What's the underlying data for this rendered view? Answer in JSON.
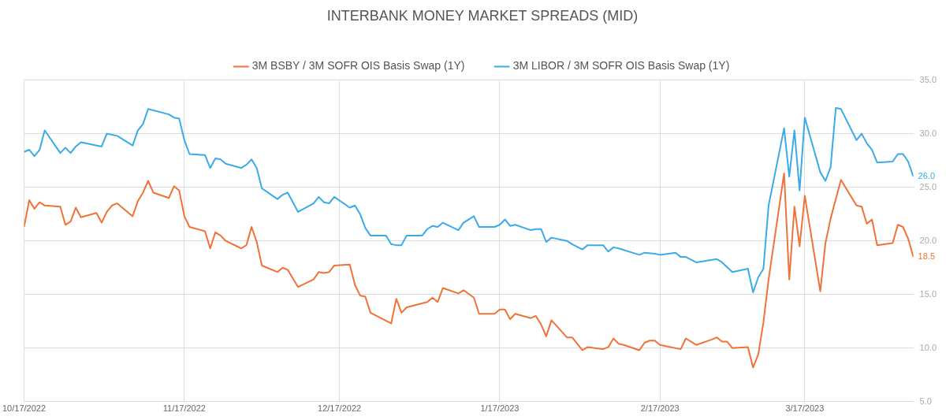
{
  "chart_data": {
    "type": "line",
    "title": "INTERBANK MONEY MARKET SPREADS (MID)",
    "legend": "top",
    "grid": true,
    "marker": "none",
    "line_style": "solid",
    "xlim": [
      "2022-10-17",
      "2023-04-07"
    ],
    "xticks": [
      {
        "value": "2022-10-17",
        "label": "10/17/2022"
      },
      {
        "value": "2022-11-17",
        "label": "11/17/2022"
      },
      {
        "value": "2022-12-17",
        "label": "12/17/2022"
      },
      {
        "value": "2023-01-17",
        "label": "1/17/2023"
      },
      {
        "value": "2023-02-17",
        "label": "2/17/2023"
      },
      {
        "value": "2023-03-17",
        "label": "3/17/2023"
      }
    ],
    "ylim": [
      5,
      35
    ],
    "yticks": [
      {
        "value": 5,
        "label": "5.0"
      },
      {
        "value": 10,
        "label": "10.0"
      },
      {
        "value": 15,
        "label": "15.0"
      },
      {
        "value": 20,
        "label": "20.0"
      },
      {
        "value": 25,
        "label": "25.0"
      },
      {
        "value": 30,
        "label": "30.0"
      },
      {
        "value": 35,
        "label": "35.0"
      }
    ],
    "annotations": [
      {
        "text": "26.0",
        "x": "2023-04-07",
        "y": 26.0
      },
      {
        "text": "18.5",
        "x": "2023-04-07",
        "y": 18.5
      }
    ],
    "series": [
      {
        "name": "3M BSBY / 3M SOFR OIS Basis Swap (1Y)",
        "color": "#f07237",
        "x": [
          "2022-10-17",
          "2022-10-18",
          "2022-10-19",
          "2022-10-20",
          "2022-10-21",
          "2022-10-24",
          "2022-10-25",
          "2022-10-26",
          "2022-10-27",
          "2022-10-28",
          "2022-10-31",
          "2022-11-01",
          "2022-11-02",
          "2022-11-03",
          "2022-11-04",
          "2022-11-07",
          "2022-11-08",
          "2022-11-09",
          "2022-11-10",
          "2022-11-11",
          "2022-11-14",
          "2022-11-15",
          "2022-11-16",
          "2022-11-17",
          "2022-11-18",
          "2022-11-21",
          "2022-11-22",
          "2022-11-23",
          "2022-11-24",
          "2022-11-25",
          "2022-11-28",
          "2022-11-29",
          "2022-11-30",
          "2022-12-01",
          "2022-12-02",
          "2022-12-05",
          "2022-12-06",
          "2022-12-07",
          "2022-12-09",
          "2022-12-12",
          "2022-12-13",
          "2022-12-14",
          "2022-12-15",
          "2022-12-16",
          "2022-12-19",
          "2022-12-20",
          "2022-12-21",
          "2022-12-22",
          "2022-12-23",
          "2022-12-27",
          "2022-12-28",
          "2022-12-29",
          "2022-12-30",
          "2023-01-03",
          "2023-01-04",
          "2023-01-05",
          "2023-01-06",
          "2023-01-09",
          "2023-01-10",
          "2023-01-12",
          "2023-01-13",
          "2023-01-16",
          "2023-01-17",
          "2023-01-18",
          "2023-01-19",
          "2023-01-20",
          "2023-01-23",
          "2023-01-24",
          "2023-01-25",
          "2023-01-26",
          "2023-01-27",
          "2023-01-30",
          "2023-01-31",
          "2023-02-02",
          "2023-02-03",
          "2023-02-06",
          "2023-02-07",
          "2023-02-08",
          "2023-02-09",
          "2023-02-10",
          "2023-02-13",
          "2023-02-14",
          "2023-02-15",
          "2023-02-16",
          "2023-02-17",
          "2023-02-21",
          "2023-02-22",
          "2023-02-24",
          "2023-02-27",
          "2023-02-28",
          "2023-03-01",
          "2023-03-02",
          "2023-03-03",
          "2023-03-06",
          "2023-03-07",
          "2023-03-08",
          "2023-03-09",
          "2023-03-10",
          "2023-03-13",
          "2023-03-14",
          "2023-03-15",
          "2023-03-16",
          "2023-03-17",
          "2023-03-20",
          "2023-03-21",
          "2023-03-22",
          "2023-03-24",
          "2023-03-27",
          "2023-03-28",
          "2023-03-29",
          "2023-03-30",
          "2023-03-31",
          "2023-04-03",
          "2023-04-04",
          "2023-04-05",
          "2023-04-06",
          "2023-04-07"
        ],
        "values": [
          21.3,
          23.8,
          23.0,
          23.6,
          23.3,
          23.2,
          21.5,
          21.8,
          23.1,
          22.2,
          22.6,
          21.7,
          22.7,
          23.3,
          23.5,
          22.3,
          23.7,
          24.5,
          25.6,
          24.5,
          24.0,
          25.1,
          24.7,
          22.3,
          21.3,
          20.9,
          19.3,
          20.8,
          20.5,
          20.0,
          19.3,
          19.6,
          21.3,
          19.9,
          17.7,
          17.1,
          17.5,
          17.3,
          15.7,
          16.4,
          17.1,
          17.0,
          17.1,
          17.7,
          17.8,
          15.9,
          14.9,
          14.8,
          13.3,
          12.3,
          14.6,
          13.3,
          13.8,
          14.3,
          14.7,
          14.3,
          15.6,
          15.1,
          15.4,
          14.7,
          13.2,
          13.2,
          13.6,
          13.6,
          12.7,
          13.2,
          12.8,
          13.0,
          12.2,
          11.1,
          12.6,
          11.0,
          11.0,
          9.8,
          10.1,
          9.9,
          10.1,
          10.9,
          10.4,
          10.3,
          9.8,
          10.5,
          10.7,
          10.7,
          10.3,
          9.9,
          10.9,
          10.3,
          10.8,
          11.0,
          10.6,
          10.6,
          10.0,
          10.1,
          8.2,
          9.4,
          12.4,
          16.4,
          26.3,
          16.4,
          23.2,
          19.5,
          24.2,
          15.3,
          19.8,
          22.1,
          25.7,
          23.3,
          23.2,
          21.6,
          22.0,
          19.6,
          19.8,
          21.5,
          21.3,
          20.2,
          18.5
        ]
      },
      {
        "name": "3M LIBOR / 3M SOFR OIS Basis Swap (1Y)",
        "color": "#3aabe8",
        "x": [
          "2022-10-17",
          "2022-10-18",
          "2022-10-19",
          "2022-10-20",
          "2022-10-21",
          "2022-10-24",
          "2022-10-25",
          "2022-10-26",
          "2022-10-27",
          "2022-10-28",
          "2022-11-01",
          "2022-11-02",
          "2022-11-03",
          "2022-11-04",
          "2022-11-07",
          "2022-11-08",
          "2022-11-09",
          "2022-11-10",
          "2022-11-14",
          "2022-11-15",
          "2022-11-16",
          "2022-11-17",
          "2022-11-18",
          "2022-11-21",
          "2022-11-22",
          "2022-11-23",
          "2022-11-24",
          "2022-11-25",
          "2022-11-28",
          "2022-11-29",
          "2022-11-30",
          "2022-12-01",
          "2022-12-02",
          "2022-12-05",
          "2022-12-06",
          "2022-12-07",
          "2022-12-09",
          "2022-12-12",
          "2022-12-13",
          "2022-12-14",
          "2022-12-15",
          "2022-12-16",
          "2022-12-19",
          "2022-12-20",
          "2022-12-21",
          "2022-12-22",
          "2022-12-23",
          "2022-12-26",
          "2022-12-27",
          "2022-12-28",
          "2022-12-29",
          "2022-12-30",
          "2023-01-02",
          "2023-01-03",
          "2023-01-04",
          "2023-01-05",
          "2023-01-06",
          "2023-01-09",
          "2023-01-10",
          "2023-01-12",
          "2023-01-13",
          "2023-01-16",
          "2023-01-17",
          "2023-01-18",
          "2023-01-19",
          "2023-01-20",
          "2023-01-23",
          "2023-01-24",
          "2023-01-25",
          "2023-01-26",
          "2023-01-27",
          "2023-01-30",
          "2023-01-31",
          "2023-02-02",
          "2023-02-03",
          "2023-02-06",
          "2023-02-07",
          "2023-02-08",
          "2023-02-09",
          "2023-02-13",
          "2023-02-14",
          "2023-02-16",
          "2023-02-17",
          "2023-02-20",
          "2023-02-21",
          "2023-02-22",
          "2023-02-24",
          "2023-02-28",
          "2023-03-01",
          "2023-03-03",
          "2023-03-06",
          "2023-03-07",
          "2023-03-08",
          "2023-03-09",
          "2023-03-10",
          "2023-03-13",
          "2023-03-14",
          "2023-03-15",
          "2023-03-16",
          "2023-03-17",
          "2023-03-20",
          "2023-03-21",
          "2023-03-22",
          "2023-03-23",
          "2023-03-24",
          "2023-03-27",
          "2023-03-28",
          "2023-03-29",
          "2023-03-30",
          "2023-03-31",
          "2023-04-03",
          "2023-04-04",
          "2023-04-05",
          "2023-04-06",
          "2023-04-07"
        ],
        "values": [
          28.3,
          28.5,
          27.9,
          28.5,
          30.3,
          28.2,
          28.7,
          28.2,
          28.8,
          29.2,
          28.8,
          30.0,
          29.9,
          29.8,
          28.9,
          30.3,
          30.9,
          32.3,
          31.8,
          31.5,
          31.4,
          29.4,
          28.1,
          28.0,
          26.8,
          27.7,
          27.6,
          27.2,
          26.8,
          27.1,
          27.6,
          26.8,
          24.9,
          23.9,
          24.3,
          24.5,
          22.7,
          23.5,
          24.1,
          23.6,
          23.5,
          24.1,
          23.1,
          23.3,
          22.5,
          21.2,
          20.5,
          20.5,
          19.7,
          19.6,
          19.6,
          20.5,
          20.5,
          21.1,
          21.4,
          21.3,
          21.7,
          21.0,
          21.7,
          22.3,
          21.3,
          21.3,
          21.5,
          22.0,
          21.4,
          21.5,
          21.0,
          21.1,
          21.1,
          19.9,
          20.3,
          20.0,
          19.7,
          19.2,
          19.6,
          19.6,
          19.0,
          19.4,
          19.3,
          18.7,
          18.9,
          18.8,
          18.7,
          18.9,
          18.5,
          18.5,
          18.0,
          18.3,
          18.0,
          17.1,
          17.4,
          15.2,
          16.6,
          17.4,
          23.3,
          30.5,
          26.0,
          30.3,
          24.7,
          31.5,
          26.4,
          25.6,
          26.9,
          32.4,
          32.3,
          29.4,
          30.0,
          29.1,
          28.5,
          27.3,
          27.4,
          28.1,
          28.1,
          27.4,
          26.0
        ]
      }
    ]
  }
}
